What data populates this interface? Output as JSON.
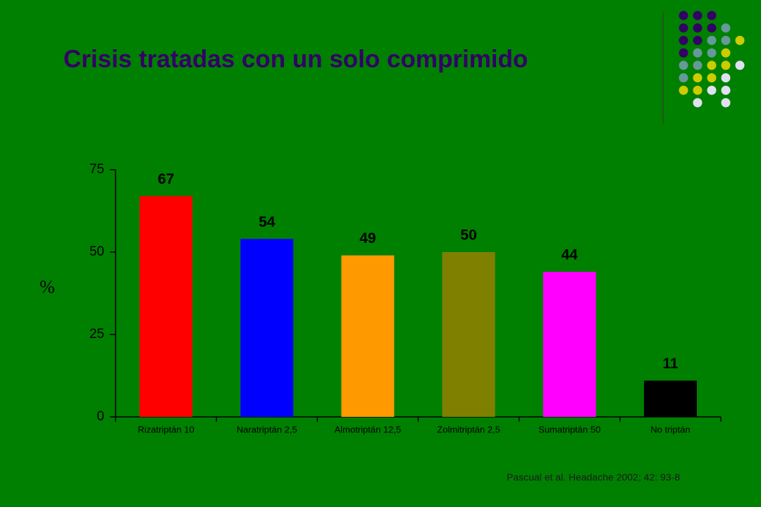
{
  "chart_data": {
    "type": "bar",
    "title": "Crisis tratadas con un solo comprimido",
    "ylabel": "%",
    "source": "Pascual et al. Headache 2002; 42: 93-8",
    "categories": [
      "Rizatriptán 10",
      "Naratriptán 2,5",
      "Almotriptán 12,5",
      "Zolmitriptán 2,5",
      "Sumatriptán 50",
      "No triptán"
    ],
    "values": [
      67,
      54,
      49,
      50,
      44,
      11
    ],
    "colors": [
      "#ff0000",
      "#0000ff",
      "#ff9900",
      "#808000",
      "#ff00ff",
      "#000000"
    ],
    "ylim": [
      0,
      75
    ],
    "yticks": [
      0,
      25,
      50,
      75
    ]
  }
}
